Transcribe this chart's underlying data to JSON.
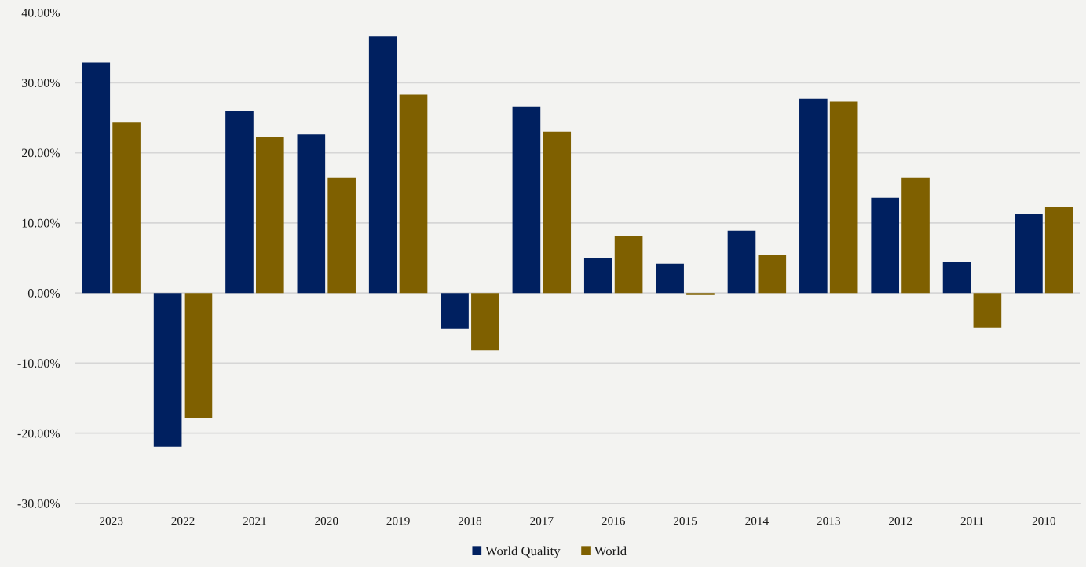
{
  "chart_data": {
    "type": "bar",
    "categories": [
      "2023",
      "2022",
      "2021",
      "2020",
      "2019",
      "2018",
      "2017",
      "2016",
      "2015",
      "2014",
      "2013",
      "2012",
      "2011",
      "2010"
    ],
    "series": [
      {
        "name": "World Quality",
        "color": "#002060",
        "values": [
          32.9,
          -21.9,
          26.0,
          22.6,
          36.6,
          -5.1,
          26.6,
          5.0,
          4.2,
          8.9,
          27.7,
          13.6,
          4.4,
          11.3
        ]
      },
      {
        "name": "World",
        "color": "#7f6000",
        "values": [
          24.4,
          -17.8,
          22.3,
          16.4,
          28.3,
          -8.2,
          23.0,
          8.1,
          -0.3,
          5.4,
          27.3,
          16.4,
          -5.0,
          12.3
        ]
      }
    ],
    "ylim": [
      -30,
      40
    ],
    "yticks": [
      {
        "value": -30,
        "label": "-30.00%"
      },
      {
        "value": -20,
        "label": "-20.00%"
      },
      {
        "value": -10,
        "label": "-10.00%"
      },
      {
        "value": 0,
        "label": "0.00%"
      },
      {
        "value": 10,
        "label": "10.00%"
      },
      {
        "value": 20,
        "label": "20.00%"
      },
      {
        "value": 30,
        "label": "30.00%"
      },
      {
        "value": 40,
        "label": "40.00%"
      }
    ],
    "grid": "y",
    "legend": "bottom"
  }
}
